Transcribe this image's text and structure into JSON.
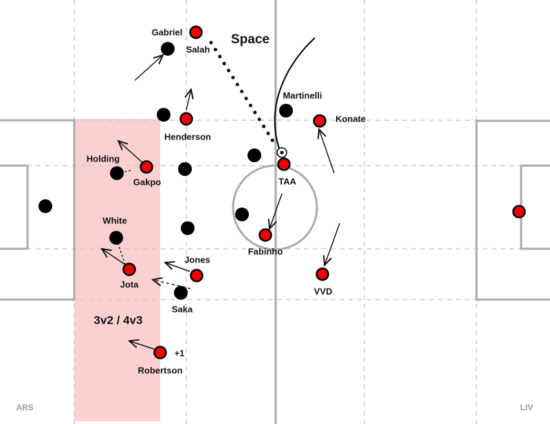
{
  "space_label": "Space",
  "zone_label": "3v2 / 4v3",
  "annotation": "+1",
  "teams": {
    "left": "ARS",
    "right": "LIV"
  },
  "players": [
    "Gabriel",
    "Salah",
    "Martinelli",
    "Konate",
    "Henderson",
    "Holding",
    "Gakpo",
    "TAA",
    "White",
    "Fabinho",
    "Jones",
    "Jota",
    "Saka",
    "VVD",
    "Robertson"
  ]
}
